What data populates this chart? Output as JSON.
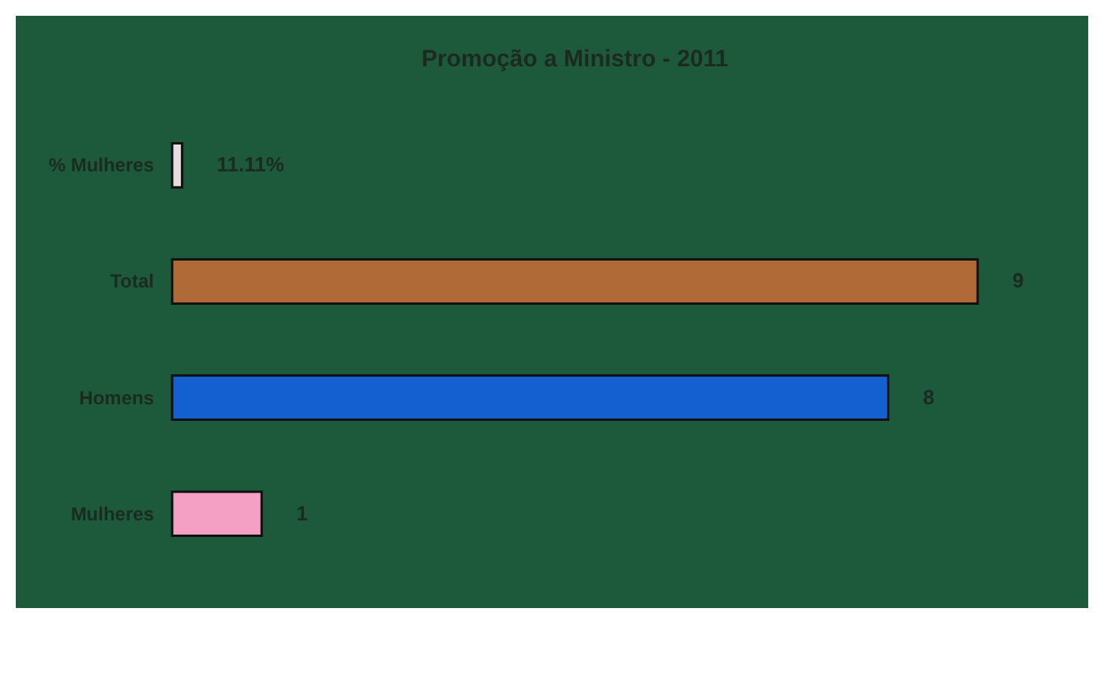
{
  "chart_data": {
    "type": "bar",
    "orientation": "horizontal",
    "title": "Promoção a Ministro - 2011",
    "categories": [
      "% Mulheres",
      "Total",
      "Homens",
      "Mulheres"
    ],
    "values": [
      0.1111,
      9,
      8,
      1
    ],
    "colors": [
      "#e8dce0",
      "#b06a38",
      "#1560d0",
      "#f4a0c4"
    ],
    "value_labels": [
      "11.11%",
      "9",
      "8",
      "1"
    ],
    "tick_labels": "y"
  }
}
